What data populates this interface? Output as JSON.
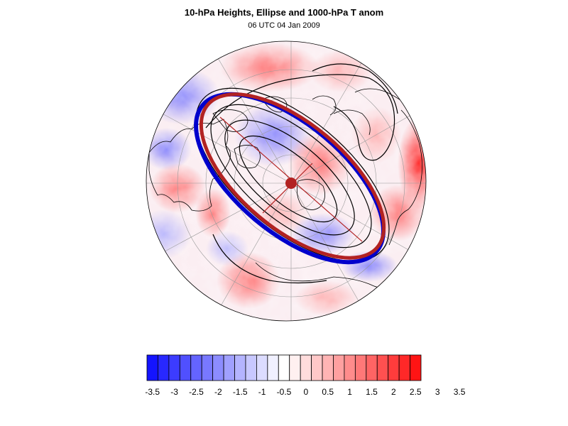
{
  "header": {
    "title": "10-hPa Heights, Ellipse and 1000-hPa T anom",
    "subtitle": "06 UTC 04 Jan 2009"
  },
  "colors": {
    "background": "#ffffff",
    "ellipse_outer": "#b22222",
    "ellipse_inner": "#0000cc",
    "centroid": "#b22222",
    "contour": "#000000",
    "graticule": "#999999"
  },
  "map": {
    "projection": "north-polar-stereographic",
    "field": "1000-hPa temperature anomaly",
    "contours": "10-hPa geopotential heights"
  },
  "colorbar": {
    "colors": [
      "#1414ff",
      "#2828ff",
      "#3c3cff",
      "#5050ff",
      "#6464ff",
      "#7878ff",
      "#8c8cff",
      "#a0a0ff",
      "#b4b4ff",
      "#c8c8ff",
      "#dcdcff",
      "#f0f0ff",
      "#ffffff",
      "#fff0f0",
      "#ffdcdc",
      "#ffc8c8",
      "#ffb4b4",
      "#ffa0a0",
      "#ff8c8c",
      "#ff7878",
      "#ff6464",
      "#ff5050",
      "#ff3c3c",
      "#ff2828",
      "#ff1414"
    ],
    "labels": [
      "-3.5",
      "-3",
      "-2.5",
      "-2",
      "-1.5",
      "-1",
      "-0.5",
      "0",
      "0.5",
      "1",
      "1.5",
      "2",
      "2.5",
      "3",
      "3.5"
    ]
  }
}
